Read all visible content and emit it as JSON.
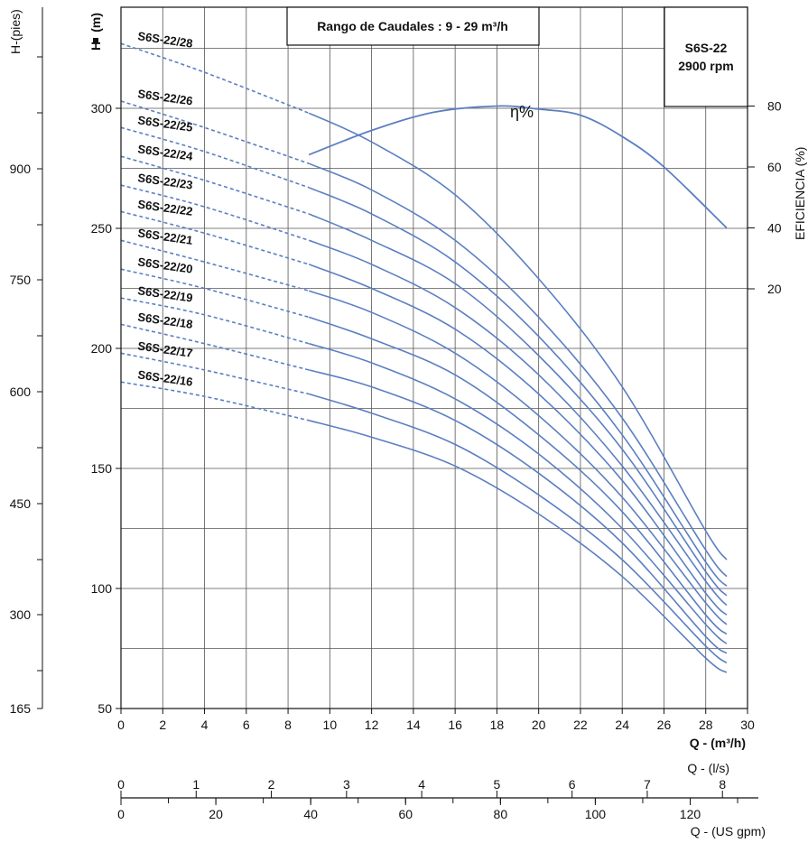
{
  "chart_data": {
    "type": "line",
    "title": "Rango de Caudales : 9 - 29 m³/h",
    "model_box": {
      "model": "S6S-22",
      "speed": "2900 rpm"
    },
    "xlabel": "Q - (m³/h)",
    "xlim": [
      0,
      30
    ],
    "x_ticks": [
      "0",
      "2",
      "4",
      "6",
      "8",
      "10",
      "12",
      "14",
      "16",
      "18",
      "20",
      "22",
      "24",
      "26",
      "28",
      "30"
    ],
    "ylabel": "H",
    "ylabel_unit": "(m)",
    "ylim": [
      50,
      345
    ],
    "y_ticks": [
      "50",
      "100",
      "150",
      "200",
      "250",
      "300"
    ],
    "left_axis": {
      "label": "H-(pies)",
      "ticks": [
        "165",
        "300",
        "450",
        "600",
        "750",
        "900"
      ]
    },
    "right_axis": {
      "label": "EFICIENCIA (%)",
      "ticks": [
        "20",
        "40",
        "60",
        "80"
      ],
      "range": [
        0,
        100
      ]
    },
    "efficiency_label": "η%",
    "bottom_axis_ls": {
      "label": "Q - (l/s)",
      "ticks": [
        "0",
        "1",
        "2",
        "3",
        "4",
        "5",
        "6",
        "7",
        "8"
      ]
    },
    "bottom_axis_gpm": {
      "label": "Q - (US gpm)",
      "ticks": [
        "0",
        "20",
        "40",
        "60",
        "80",
        "100",
        "120"
      ]
    },
    "series": [
      {
        "name": "S6S-22/28",
        "x": [
          0,
          4,
          9,
          12,
          16,
          20,
          24,
          28,
          29
        ],
        "y": [
          327,
          315,
          298,
          286,
          264,
          229,
          184,
          124,
          112
        ]
      },
      {
        "name": "S6S-22/26",
        "x": [
          0,
          4,
          9,
          12,
          16,
          20,
          24,
          28,
          29
        ],
        "y": [
          303,
          292,
          277,
          266,
          245,
          213,
          171,
          116,
          105
        ]
      },
      {
        "name": "S6S-22/25",
        "x": [
          0,
          4,
          9,
          12,
          16,
          20,
          24,
          28,
          29
        ],
        "y": [
          292,
          282,
          267,
          256,
          236,
          205,
          164,
          111,
          101
        ]
      },
      {
        "name": "S6S-22/24",
        "x": [
          0,
          4,
          9,
          12,
          16,
          20,
          24,
          28,
          29
        ],
        "y": [
          280,
          270,
          256,
          245,
          227,
          197,
          158,
          107,
          97
        ]
      },
      {
        "name": "S6S-22/23",
        "x": [
          0,
          4,
          9,
          12,
          16,
          20,
          24,
          28,
          29
        ],
        "y": [
          268,
          259,
          245,
          235,
          217,
          189,
          151,
          103,
          93
        ]
      },
      {
        "name": "S6S-22/22",
        "x": [
          0,
          4,
          9,
          12,
          16,
          20,
          24,
          28,
          29
        ],
        "y": [
          257,
          248,
          235,
          225,
          208,
          181,
          145,
          98,
          89
        ]
      },
      {
        "name": "S6S-22/21",
        "x": [
          0,
          4,
          9,
          12,
          16,
          20,
          24,
          28,
          29
        ],
        "y": [
          245,
          236,
          224,
          215,
          198,
          172,
          138,
          94,
          85
        ]
      },
      {
        "name": "S6S-22/20",
        "x": [
          0,
          4,
          9,
          12,
          16,
          20,
          24,
          28,
          29
        ],
        "y": [
          233,
          225,
          213,
          204,
          189,
          164,
          132,
          89,
          81
        ]
      },
      {
        "name": "S6S-22/19",
        "x": [
          0,
          4,
          9,
          12,
          16,
          20,
          24,
          28,
          29
        ],
        "y": [
          221,
          214,
          202,
          194,
          179,
          156,
          125,
          85,
          77
        ]
      },
      {
        "name": "S6S-22/18",
        "x": [
          0,
          4,
          9,
          12,
          16,
          20,
          24,
          28,
          29
        ],
        "y": [
          210,
          202,
          191,
          184,
          170,
          148,
          119,
          80,
          73
        ]
      },
      {
        "name": "S6S-22/17",
        "x": [
          0,
          4,
          9,
          12,
          16,
          20,
          24,
          28,
          29
        ],
        "y": [
          198,
          191,
          181,
          173,
          160,
          139,
          112,
          76,
          69
        ]
      },
      {
        "name": "S6S-22/16",
        "x": [
          0,
          4,
          9,
          12,
          16,
          20,
          24,
          28,
          29
        ],
        "y": [
          186,
          180,
          170,
          163,
          151,
          131,
          105,
          71,
          65
        ]
      }
    ],
    "efficiency_curve": {
      "x": [
        9,
        12,
        15,
        18,
        20,
        22,
        24,
        26,
        29
      ],
      "y": [
        64,
        72,
        78,
        80,
        79,
        77,
        70,
        60,
        40
      ]
    },
    "grid": true,
    "curve_color": "#5b7fc2",
    "grid_color": "#555555"
  }
}
